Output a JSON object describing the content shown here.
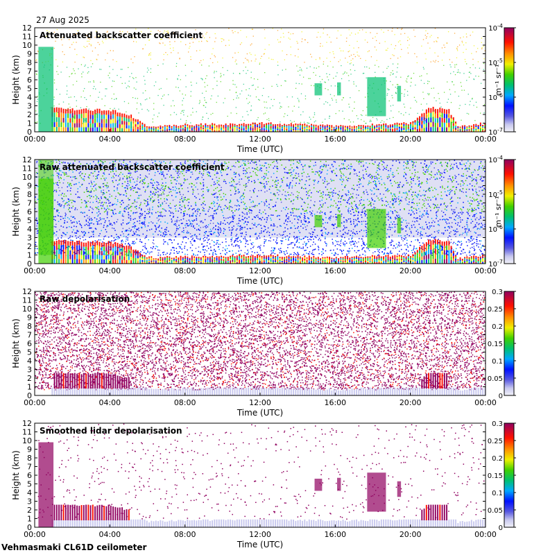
{
  "date": "27 Aug 2025",
  "footer": "Vehmasmaki CL61D ceilometer",
  "chart_data": [
    {
      "type": "heatmap",
      "title": "Attenuated backscatter coefficient",
      "xlabel": "Time (UTC)",
      "ylabel": "Height (km)",
      "xticks": [
        "00:00",
        "04:00",
        "08:00",
        "12:00",
        "16:00",
        "20:00",
        "00:00"
      ],
      "yticks": [
        "0",
        "1",
        "2",
        "3",
        "4",
        "5",
        "6",
        "7",
        "8",
        "9",
        "10",
        "11",
        "12"
      ],
      "ylim": [
        0,
        12
      ],
      "colorbar": {
        "scale": "log",
        "unit": "m-1 sr-1",
        "ticks": [
          {
            "base": "10",
            "exp": "-4"
          },
          {
            "base": "10",
            "exp": "-5"
          },
          {
            "base": "10",
            "exp": "-6"
          },
          {
            "base": "10",
            "exp": "-7"
          }
        ]
      },
      "features": {
        "boundary_layer_km": [
          [
            0,
            2.8
          ],
          [
            2,
            2.6
          ],
          [
            4,
            2.5
          ],
          [
            5,
            2.0
          ],
          [
            6,
            0.7
          ],
          [
            8,
            0.8
          ],
          [
            12,
            1.0
          ],
          [
            16,
            0.7
          ],
          [
            20,
            1.0
          ],
          [
            21,
            2.8
          ],
          [
            22,
            2.6
          ],
          [
            22.5,
            0.6
          ],
          [
            24,
            1.0
          ]
        ],
        "cloud_patches": [
          {
            "x": [
              14.9,
              15.3
            ],
            "y": [
              4.2,
              5.6
            ]
          },
          {
            "x": [
              16.1,
              16.3
            ],
            "y": [
              4.2,
              5.7
            ]
          },
          {
            "x": [
              17.7,
              18.7
            ],
            "y": [
              1.8,
              6.3
            ]
          },
          {
            "x": [
              19.3,
              19.5
            ],
            "y": [
              3.5,
              5.3
            ]
          },
          {
            "x": [
              0.2,
              1.0
            ],
            "y": [
              0,
              9.8
            ]
          }
        ]
      }
    },
    {
      "type": "heatmap",
      "title": "Raw attenuated backscatter coefficient",
      "xlabel": "Time (UTC)",
      "ylabel": "Height (km)",
      "xticks": [
        "00:00",
        "04:00",
        "08:00",
        "12:00",
        "16:00",
        "20:00",
        "00:00"
      ],
      "yticks": [
        "0",
        "1",
        "2",
        "3",
        "4",
        "5",
        "6",
        "7",
        "8",
        "9",
        "10",
        "11",
        "12"
      ],
      "ylim": [
        0,
        12
      ],
      "colorbar": {
        "scale": "log",
        "unit": "m-1 sr-1",
        "ticks": [
          {
            "base": "10",
            "exp": "-4"
          },
          {
            "base": "10",
            "exp": "-5"
          },
          {
            "base": "10",
            "exp": "-6"
          },
          {
            "base": "10",
            "exp": "-7"
          }
        ]
      }
    },
    {
      "type": "heatmap",
      "title": "Raw depolarisation",
      "xlabel": "Time (UTC)",
      "ylabel": "Height (km)",
      "xticks": [
        "00:00",
        "04:00",
        "08:00",
        "12:00",
        "16:00",
        "20:00",
        "00:00"
      ],
      "yticks": [
        "0",
        "1",
        "2",
        "3",
        "4",
        "5",
        "6",
        "7",
        "8",
        "9",
        "10",
        "11",
        "12"
      ],
      "ylim": [
        0,
        12
      ],
      "colorbar": {
        "scale": "linear",
        "ticks": [
          "0.3",
          "0.25",
          "0.2",
          "0.15",
          "0.1",
          "0.05",
          "0"
        ]
      }
    },
    {
      "type": "heatmap",
      "title": "Smoothed lidar depolarisation",
      "xlabel": "Time (UTC)",
      "ylabel": "Height (km)",
      "xticks": [
        "00:00",
        "04:00",
        "08:00",
        "12:00",
        "16:00",
        "20:00",
        "00:00"
      ],
      "yticks": [
        "0",
        "1",
        "2",
        "3",
        "4",
        "5",
        "6",
        "7",
        "8",
        "9",
        "10",
        "11",
        "12"
      ],
      "ylim": [
        0,
        12
      ],
      "colorbar": {
        "scale": "linear",
        "ticks": [
          "0.3",
          "0.25",
          "0.2",
          "0.15",
          "0.1",
          "0.05",
          "0"
        ]
      }
    }
  ]
}
